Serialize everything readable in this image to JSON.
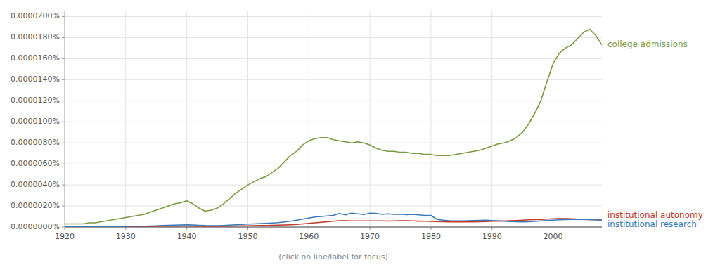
{
  "chart_data": {
    "type": "line",
    "annotations": [
      "(click on line/label for focus)"
    ],
    "x": [
      1920,
      1921,
      1922,
      1923,
      1924,
      1925,
      1926,
      1927,
      1928,
      1929,
      1930,
      1931,
      1932,
      1933,
      1934,
      1935,
      1936,
      1937,
      1938,
      1939,
      1940,
      1941,
      1942,
      1943,
      1944,
      1945,
      1946,
      1947,
      1948,
      1949,
      1950,
      1951,
      1952,
      1953,
      1954,
      1955,
      1956,
      1957,
      1958,
      1959,
      1960,
      1961,
      1962,
      1963,
      1964,
      1965,
      1966,
      1967,
      1968,
      1969,
      1970,
      1971,
      1972,
      1973,
      1974,
      1975,
      1976,
      1977,
      1978,
      1979,
      1980,
      1981,
      1982,
      1983,
      1984,
      1985,
      1986,
      1987,
      1988,
      1989,
      1990,
      1991,
      1992,
      1993,
      1994,
      1995,
      1996,
      1997,
      1998,
      1999,
      2000,
      2001,
      2002,
      2003,
      2004,
      2005,
      2006,
      2007,
      2008
    ],
    "series": [
      {
        "name": "college admissions",
        "color": "#7a9a42",
        "values": [
          3e-09,
          3e-09,
          3e-09,
          3e-09,
          4e-09,
          4e-09,
          5e-09,
          6e-09,
          7e-09,
          8e-09,
          9e-09,
          1e-08,
          1.1e-08,
          1.2e-08,
          1.4e-08,
          1.6e-08,
          1.8e-08,
          2e-08,
          2.2e-08,
          2.3e-08,
          2.5e-08,
          2.2e-08,
          1.8e-08,
          1.5e-08,
          1.6e-08,
          1.8e-08,
          2.2e-08,
          2.7e-08,
          3.2e-08,
          3.6e-08,
          4e-08,
          4.3e-08,
          4.6e-08,
          4.8e-08,
          5.2e-08,
          5.6e-08,
          6.2e-08,
          6.8e-08,
          7.2e-08,
          7.8e-08,
          8.2e-08,
          8.4e-08,
          8.5e-08,
          8.5e-08,
          8.3e-08,
          8.2e-08,
          8.1e-08,
          8e-08,
          8.1e-08,
          8e-08,
          7.8e-08,
          7.5e-08,
          7.3e-08,
          7.2e-08,
          7.2e-08,
          7.1e-08,
          7.1e-08,
          7e-08,
          7e-08,
          6.9e-08,
          6.9e-08,
          6.8e-08,
          6.8e-08,
          6.8e-08,
          6.9e-08,
          7e-08,
          7.1e-08,
          7.2e-08,
          7.3e-08,
          7.5e-08,
          7.7e-08,
          7.9e-08,
          8e-08,
          8.2e-08,
          8.5e-08,
          9e-08,
          9.8e-08,
          1.08e-07,
          1.2e-07,
          1.38e-07,
          1.55e-07,
          1.65e-07,
          1.7e-07,
          1.73e-07,
          1.79e-07,
          1.85e-07,
          1.88e-07,
          1.82e-07,
          1.73e-07
        ]
      },
      {
        "name": "institutional autonomy",
        "color": "#c0392b",
        "values": [
          3e-10,
          3e-10,
          3e-10,
          3e-10,
          3e-10,
          4e-10,
          4e-10,
          4e-10,
          5e-10,
          5e-10,
          5e-10,
          5e-10,
          5e-10,
          5e-10,
          6e-10,
          7e-10,
          8e-10,
          9e-10,
          9e-10,
          1e-09,
          1e-09,
          9e-10,
          8e-10,
          7e-10,
          7e-10,
          7e-10,
          8e-10,
          9e-10,
          1e-09,
          1.1e-09,
          1.2e-09,
          1.3e-09,
          1.5e-09,
          1.5e-09,
          1.6e-09,
          1.8e-09,
          2e-09,
          2.2e-09,
          2.5e-09,
          3e-09,
          3.5e-09,
          4e-09,
          4.5e-09,
          5e-09,
          5.5e-09,
          6e-09,
          6e-09,
          5.8e-09,
          5.8e-09,
          5.8e-09,
          5.8e-09,
          5.8e-09,
          5.8e-09,
          5.7e-09,
          5.8e-09,
          5.9e-09,
          5.9e-09,
          5.8e-09,
          5.6e-09,
          5.5e-09,
          5.3e-09,
          5.2e-09,
          5e-09,
          4.8e-09,
          4.8e-09,
          4.8e-09,
          4.8e-09,
          4.9e-09,
          5e-09,
          5.2e-09,
          5.5e-09,
          5.6e-09,
          5.8e-09,
          6e-09,
          6.2e-09,
          6.5e-09,
          6.8e-09,
          7e-09,
          7.2e-09,
          7.5e-09,
          7.8e-09,
          8e-09,
          8e-09,
          7.8e-09,
          7.5e-09,
          7.2e-09,
          7e-09,
          6.8e-09,
          6.5e-09
        ]
      },
      {
        "name": "institutional research",
        "color": "#3a7ab8",
        "values": [
          3e-10,
          3e-10,
          3e-10,
          3e-10,
          3e-10,
          4e-10,
          4e-10,
          5e-10,
          5e-10,
          6e-10,
          7e-10,
          8e-10,
          8e-10,
          8e-10,
          1e-09,
          1.2e-09,
          1.4e-09,
          1.6e-09,
          1.8e-09,
          2e-09,
          2.2e-09,
          2e-09,
          1.7e-09,
          1.4e-09,
          1.3e-09,
          1.3e-09,
          1.5e-09,
          1.8e-09,
          2.2e-09,
          2.5e-09,
          2.8e-09,
          3e-09,
          3.3e-09,
          3.5e-09,
          3.8e-09,
          4.2e-09,
          4.8e-09,
          5.5e-09,
          6.5e-09,
          7.5e-09,
          8.5e-09,
          9.5e-09,
          1e-08,
          1.05e-08,
          1.1e-08,
          1.28e-08,
          1.15e-08,
          1.32e-08,
          1.25e-08,
          1.18e-08,
          1.32e-08,
          1.3e-08,
          1.2e-08,
          1.25e-08,
          1.2e-08,
          1.22e-08,
          1.18e-08,
          1.2e-08,
          1.15e-08,
          1.1e-08,
          1.1e-08,
          7.2e-09,
          6.5e-09,
          6e-09,
          5.8e-09,
          5.8e-09,
          6e-09,
          6.2e-09,
          6.3e-09,
          6.5e-09,
          6.2e-09,
          5.8e-09,
          5.5e-09,
          5.2e-09,
          5e-09,
          4.8e-09,
          5e-09,
          5.3e-09,
          5.8e-09,
          6.2e-09,
          6.5e-09,
          6.8e-09,
          7e-09,
          7.2e-09,
          7.3e-09,
          7.2e-09,
          7e-09,
          6.8e-09,
          6.5e-09
        ]
      }
    ],
    "xlim": [
      1920,
      2008
    ],
    "xticks": [
      1920,
      1930,
      1940,
      1950,
      1960,
      1970,
      1980,
      1990,
      2000
    ],
    "ylim": [
      0,
      2.05e-07
    ],
    "yticks": [
      {
        "value": 0.0,
        "label": "0.0000000%"
      },
      {
        "value": 2e-08,
        "label": "0.0000020%"
      },
      {
        "value": 4e-08,
        "label": "0.0000040%"
      },
      {
        "value": 6e-08,
        "label": "0.0000060%"
      },
      {
        "value": 8e-08,
        "label": "0.0000080%"
      },
      {
        "value": 1e-07,
        "label": "0.0000100%"
      },
      {
        "value": 1.2e-07,
        "label": "0.0000120%"
      },
      {
        "value": 1.4e-07,
        "label": "0.0000140%"
      },
      {
        "value": 1.6e-07,
        "label": "0.0000160%"
      },
      {
        "value": 1.8e-07,
        "label": "0.0000180%"
      },
      {
        "value": 2e-07,
        "label": "0.0000200%"
      }
    ],
    "grid": true
  }
}
